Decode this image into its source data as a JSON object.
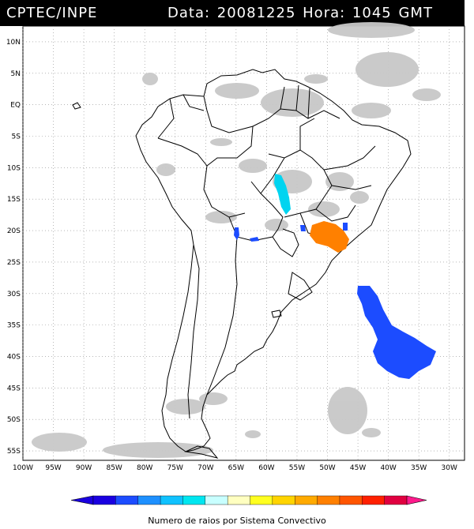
{
  "header": {
    "source": "CPTEC/INPE",
    "date_label": "Data:",
    "date": "20081225",
    "hour_label": "Hora:",
    "hour": "1045",
    "tz": "GMT"
  },
  "map": {
    "lat_labels": [
      "10N",
      "5N",
      "EQ",
      "5S",
      "10S",
      "15S",
      "20S",
      "25S",
      "30S",
      "35S",
      "40S",
      "45S",
      "50S",
      "55S"
    ],
    "lat_values": [
      10,
      5,
      0,
      -5,
      -10,
      -15,
      -20,
      -25,
      -30,
      -35,
      -40,
      -45,
      -50,
      -55
    ],
    "lon_labels": [
      "100W",
      "95W",
      "90W",
      "85W",
      "80W",
      "75W",
      "70W",
      "65W",
      "60W",
      "55W",
      "50W",
      "45W",
      "40W",
      "35W",
      "30W"
    ],
    "lon_values": [
      -100,
      -95,
      -90,
      -85,
      -80,
      -75,
      -70,
      -65,
      -60,
      -55,
      -50,
      -45,
      -40,
      -35,
      -30
    ],
    "extent": {
      "lon_min": -100,
      "lon_max": -27.5,
      "lat_min": -56.5,
      "lat_max": 12.5
    },
    "colors": {
      "land_border": "#000000",
      "cloud": "#c8c8c8",
      "grid": "#8a8a8a"
    }
  },
  "colorbar": {
    "ticks": [
      "1",
      "10",
      "15",
      "20",
      "25",
      "30",
      "35",
      "40",
      "50",
      "100",
      "150",
      "200",
      "250",
      "350"
    ],
    "colors": [
      "#1a00e0",
      "#1c4cff",
      "#1e90ff",
      "#10c2ff",
      "#00e6f0",
      "#c8ffff",
      "#ffffc0",
      "#ffff20",
      "#ffd400",
      "#ffaa00",
      "#ff8000",
      "#ff5500",
      "#ff2000",
      "#e00040"
    ],
    "end_color": "#ff1a8c",
    "label": "Numero de raios por Sistema Convectivo"
  }
}
